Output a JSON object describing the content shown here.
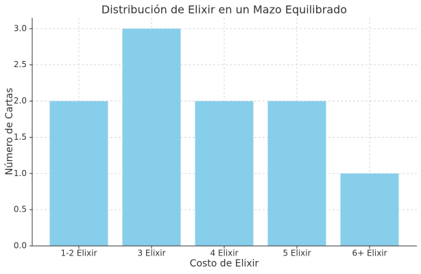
{
  "chart_data": {
    "type": "bar",
    "title": "Distribución de Elixir en un Mazo Equilibrado",
    "x_label": "Costo de Elixir",
    "y_label": "Número de Cartas",
    "categories": [
      "1-2 Elixir",
      "3 Elixir",
      "4 Elixir",
      "5 Elixir",
      "6+ Elixir"
    ],
    "values": [
      2,
      3,
      2,
      2,
      1
    ],
    "color": "#87ceeb",
    "ylim": [
      0,
      3.15
    ],
    "yticks": [
      {
        "value": 0,
        "label": "0.0"
      },
      0.5,
      {
        "value": 1,
        "label": "1.0"
      },
      1.5,
      {
        "value": 2,
        "label": "2.0"
      },
      2.5,
      {
        "value": 3,
        "label": "3.0"
      }
    ],
    "grid": true
  }
}
